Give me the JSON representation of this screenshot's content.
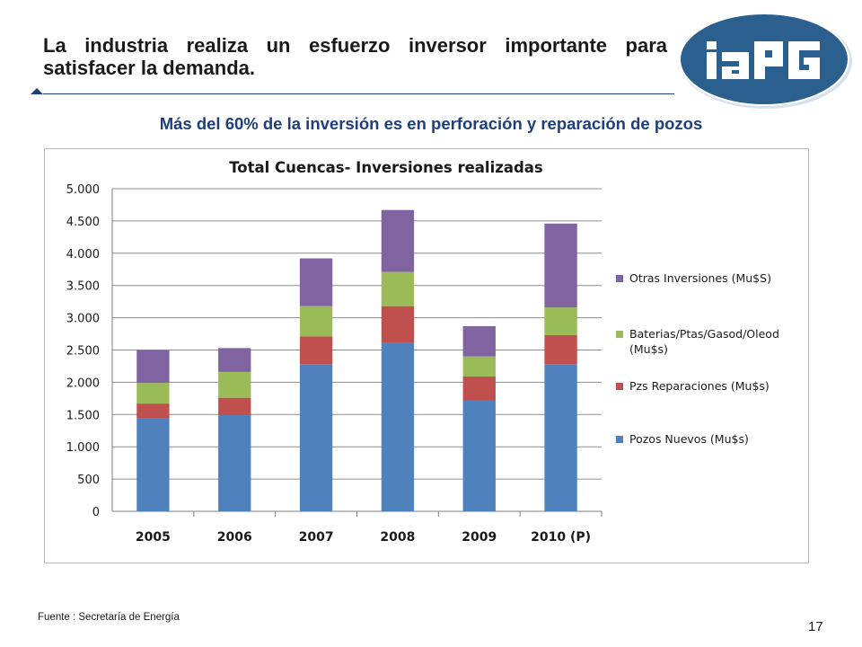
{
  "slide": {
    "title": "La industria realiza un esfuerzo inversor importante para satisfacer la demanda.",
    "subtitle": "Más del 60% de la inversión es en perforación y reparación de pozos",
    "source": "Fuente :  Secretaría de Energía",
    "page_number": "17"
  },
  "logo": {
    "text": "IAPG",
    "colors": {
      "fill": "#2b5f8e",
      "ring": "#e8eef5",
      "letters": "#ffffff"
    }
  },
  "chart_data": {
    "type": "bar",
    "stacked": true,
    "title": "Total Cuencas- Inversiones realizadas",
    "xlabel": "",
    "ylabel": "",
    "categories": [
      "2005",
      "2006",
      "2007",
      "2008",
      "2009",
      "2010 (P)"
    ],
    "ylim": [
      0,
      5000
    ],
    "yticks": [
      0,
      500,
      1000,
      1500,
      2000,
      2500,
      3000,
      3500,
      4000,
      4500,
      5000
    ],
    "ytick_labels": [
      "0",
      "500",
      "1.000",
      "1.500",
      "2.000",
      "2.500",
      "3.000",
      "3.500",
      "4.000",
      "4.500",
      "5.000"
    ],
    "grid": true,
    "legend": "right",
    "series": [
      {
        "name": "Pozos Nuevos  (Mu$s)",
        "color": "#4f81bd",
        "values": [
          1440,
          1490,
          2280,
          2610,
          1720,
          2280
        ]
      },
      {
        "name": "Pzs Reparaciones  (Mu$s)",
        "color": "#c0504d",
        "values": [
          230,
          270,
          430,
          570,
          370,
          450
        ]
      },
      {
        "name": "Baterias/Ptas/Gasod/Oleod (Mu$s)",
        "color": "#9bbb59",
        "values": [
          320,
          400,
          470,
          530,
          310,
          430
        ]
      },
      {
        "name": "Otras Inversiones  (Mu$S)",
        "color": "#8064a2",
        "values": [
          510,
          370,
          740,
          960,
          470,
          1300
        ]
      }
    ],
    "legend_order": [
      3,
      2,
      1,
      0
    ]
  }
}
